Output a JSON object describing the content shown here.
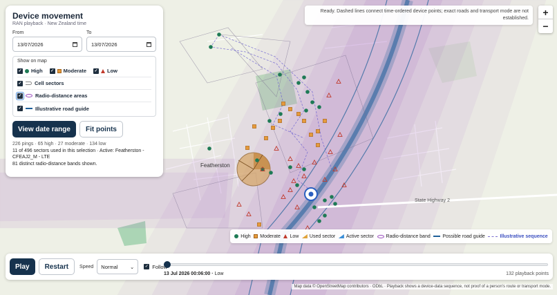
{
  "panel": {
    "title": "Device movement",
    "subtitle": "RAN playback · New Zealand time",
    "from_label": "From",
    "from_value": "13/07/2026",
    "to_label": "To",
    "to_value": "13/07/2026",
    "show_on_map_label": "Show on map",
    "levels": {
      "high": "High",
      "moderate": "Moderate",
      "low": "Low"
    },
    "layer_cell_sectors": "Cell sectors",
    "layer_radio_distance": "Radio-distance areas",
    "layer_road_guide": "Illustrative road guide",
    "view_date_range": "View date range",
    "fit_points": "Fit points",
    "stats_line1": "226 pings · 65 high · 27 moderate · 134 low",
    "stats_line2": "11 of 496 sectors used in this selection · Active: Featherston - CFEAJ2_M - LTE",
    "stats_line3": "81 distinct radio-distance bands shown."
  },
  "status": {
    "text": "Ready. Dashed lines connect time-ordered device points; exact roads and transport mode are not established."
  },
  "zoom": {
    "in": "+",
    "out": "−"
  },
  "map": {
    "town_label": "Featherston",
    "road_label": "State Highway 2",
    "colors": {
      "high": "#1e7a55",
      "moderate": "#e59a3c",
      "low": "#c0392b",
      "band": "#9b4fbf",
      "road": "#1e5f99"
    }
  },
  "legend": {
    "high": "High",
    "moderate": "Moderate",
    "low": "Low",
    "used_sector": "Used sector",
    "active_sector": "Active sector",
    "radio_band": "Radio-distance band",
    "road_guide": "Possible road guide",
    "sequence": "Illustrative sequence"
  },
  "playback": {
    "play": "Play",
    "restart": "Restart",
    "speed_label": "Speed",
    "speed_value": "Normal",
    "follow_label": "Follow",
    "current_time": "13 Jul 2026 00:06:00 · ",
    "current_level": "Low",
    "points_count": "132 playback points",
    "progress": 0
  },
  "attribution": "Map data © OpenStreetMap contributors · ODbL · Playback shows a device-data sequence, not proof of a person's route or transport mode."
}
